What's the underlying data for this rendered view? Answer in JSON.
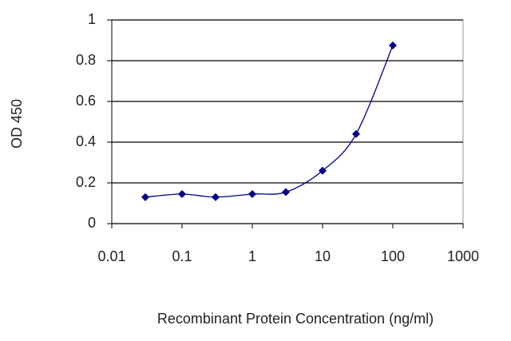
{
  "chart_data": {
    "type": "line",
    "x_label": "Recombinant Protein Concentration (ng/ml)",
    "y_label": "OD 450",
    "x": [
      0.03,
      0.1,
      0.3,
      1,
      3,
      10,
      30,
      100
    ],
    "values": [
      0.13,
      0.145,
      0.13,
      0.145,
      0.155,
      0.26,
      0.44,
      0.875
    ],
    "color": "#00008b",
    "log_x": true,
    "xlim": [
      0.01,
      1000
    ],
    "xticks": [
      0.01,
      0.1,
      1,
      10,
      100,
      1000
    ],
    "ylim": [
      0,
      1
    ],
    "yticks": [
      0,
      0.2,
      0.4,
      0.6,
      0.8,
      1
    ],
    "grid": true
  }
}
